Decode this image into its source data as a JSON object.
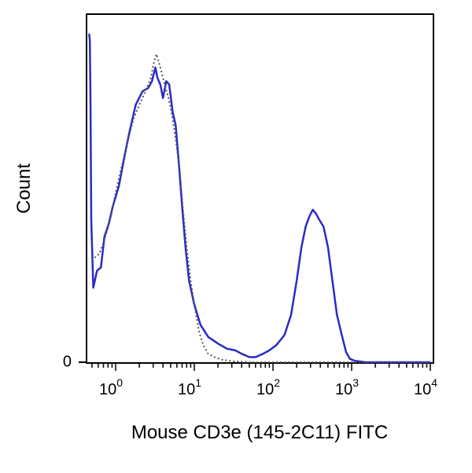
{
  "chart_data": {
    "type": "line",
    "xlabel": "Mouse CD3e (145-2C11) FITC",
    "ylabel": "Count",
    "x_scale": "log",
    "x_tick_labels": [
      {
        "base": "10",
        "exp": "0",
        "value": 1
      },
      {
        "base": "10",
        "exp": "1",
        "value": 10
      },
      {
        "base": "10",
        "exp": "2",
        "value": 100
      },
      {
        "base": "10",
        "exp": "3",
        "value": 1000
      },
      {
        "base": "10",
        "exp": "4",
        "value": 10000
      }
    ],
    "y_tick_labels": [
      {
        "label": "0",
        "value": 0
      }
    ],
    "xlim": [
      0.45,
      10000
    ],
    "ylim": [
      0,
      100
    ],
    "series": [
      {
        "style": "solid",
        "color": "#2b2bc8",
        "points": [
          [
            0.46,
            97
          ],
          [
            0.47,
            95
          ],
          [
            0.48,
            75
          ],
          [
            0.49,
            42
          ],
          [
            0.52,
            22
          ],
          [
            0.58,
            27
          ],
          [
            0.65,
            28
          ],
          [
            0.72,
            37
          ],
          [
            0.82,
            41
          ],
          [
            0.92,
            46
          ],
          [
            1.1,
            52
          ],
          [
            1.3,
            61
          ],
          [
            1.5,
            68
          ],
          [
            1.8,
            76
          ],
          [
            2.2,
            80
          ],
          [
            2.6,
            81
          ],
          [
            2.9,
            83
          ],
          [
            3.2,
            87
          ],
          [
            3.4,
            84
          ],
          [
            3.7,
            82
          ],
          [
            4.0,
            78
          ],
          [
            4.4,
            83
          ],
          [
            4.8,
            82
          ],
          [
            5.3,
            74
          ],
          [
            5.8,
            70
          ],
          [
            6.4,
            58
          ],
          [
            7.0,
            46
          ],
          [
            7.8,
            33
          ],
          [
            8.6,
            24
          ],
          [
            10,
            17
          ],
          [
            12,
            11
          ],
          [
            15,
            7.5
          ],
          [
            20,
            5.5
          ],
          [
            26,
            4
          ],
          [
            33,
            3.5
          ],
          [
            40,
            2.5
          ],
          [
            50,
            1.5
          ],
          [
            60,
            1.5
          ],
          [
            75,
            2.5
          ],
          [
            90,
            3.5
          ],
          [
            110,
            5
          ],
          [
            140,
            8
          ],
          [
            170,
            14
          ],
          [
            200,
            24
          ],
          [
            230,
            34
          ],
          [
            260,
            40
          ],
          [
            290,
            43
          ],
          [
            320,
            45
          ],
          [
            350,
            44
          ],
          [
            390,
            42
          ],
          [
            440,
            40
          ],
          [
            500,
            34
          ],
          [
            570,
            24
          ],
          [
            650,
            14
          ],
          [
            750,
            8
          ],
          [
            850,
            3
          ],
          [
            950,
            1
          ],
          [
            1100,
            0.4
          ],
          [
            1500,
            0
          ],
          [
            10000,
            0
          ]
        ]
      },
      {
        "style": "dotted",
        "color": "#555555",
        "points": [
          [
            0.5,
            30
          ],
          [
            0.55,
            31
          ],
          [
            0.62,
            32
          ],
          [
            0.72,
            36
          ],
          [
            0.85,
            42
          ],
          [
            1.0,
            50
          ],
          [
            1.2,
            58
          ],
          [
            1.45,
            66
          ],
          [
            1.7,
            72
          ],
          [
            2.0,
            76
          ],
          [
            2.4,
            80
          ],
          [
            2.8,
            84
          ],
          [
            3.1,
            89
          ],
          [
            3.3,
            91
          ],
          [
            3.5,
            89
          ],
          [
            3.8,
            86
          ],
          [
            4.2,
            82
          ],
          [
            4.7,
            78
          ],
          [
            5.2,
            73
          ],
          [
            5.8,
            66
          ],
          [
            6.5,
            57
          ],
          [
            7.2,
            45
          ],
          [
            8.0,
            34
          ],
          [
            9.0,
            24
          ],
          [
            10,
            17
          ],
          [
            11.5,
            9
          ],
          [
            13,
            5
          ],
          [
            15,
            2.5
          ],
          [
            18,
            1.5
          ],
          [
            22,
            0.8
          ],
          [
            30,
            0.3
          ],
          [
            50,
            0
          ],
          [
            10000,
            0
          ]
        ]
      }
    ]
  }
}
